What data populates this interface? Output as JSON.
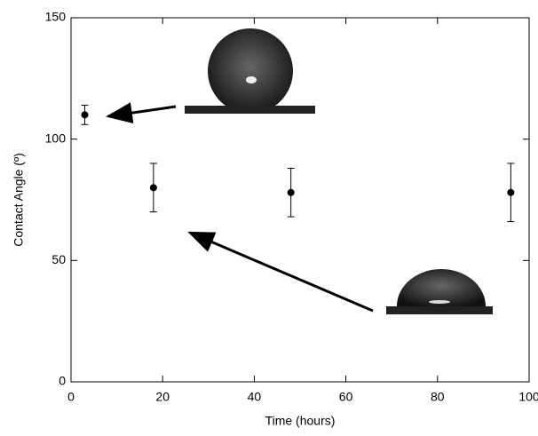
{
  "chart_data": {
    "type": "scatter",
    "x_label": "Time (hours)",
    "y_label": "Contact Angle (º)",
    "series": [
      {
        "x": [
          3,
          18,
          48,
          96
        ],
        "values": [
          110,
          80,
          78,
          78
        ],
        "errors": [
          4,
          10,
          10,
          12
        ],
        "color": "#000000"
      }
    ],
    "xlim": [
      0,
      100
    ],
    "xticks": [
      0,
      20,
      40,
      60,
      80,
      100
    ],
    "ylim": [
      0,
      150
    ],
    "yticks": [
      0,
      50,
      100,
      150
    ]
  }
}
